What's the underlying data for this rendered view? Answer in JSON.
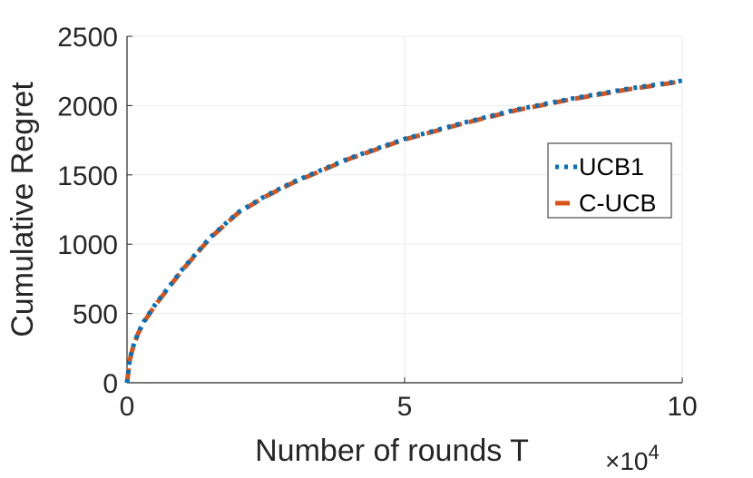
{
  "chart_data": {
    "type": "line",
    "xlabel": "Number of rounds T",
    "ylabel": "Cumulative Regret",
    "x_multiplier_label": "×10",
    "x_multiplier_exp": "4",
    "xlim": [
      0,
      100000
    ],
    "ylim": [
      0,
      2500
    ],
    "x_tick_values": [
      0,
      50000,
      100000
    ],
    "x_tick_labels": [
      "0",
      "5",
      "10"
    ],
    "y_ticks": [
      0,
      500,
      1000,
      1500,
      2000,
      2500
    ],
    "grid": true,
    "legend_position": "right",
    "x": [
      0,
      500,
      1000,
      2000,
      3000,
      5000,
      7500,
      10000,
      15000,
      20000,
      25000,
      30000,
      40000,
      50000,
      60000,
      70000,
      80000,
      90000,
      100000
    ],
    "series": [
      {
        "name": "UCB1",
        "style": "dotted",
        "color": "#0072BD",
        "values": [
          0,
          170,
          250,
          360,
          440,
          560,
          690,
          820,
          1050,
          1230,
          1350,
          1450,
          1620,
          1760,
          1870,
          1970,
          2050,
          2120,
          2180
        ]
      },
      {
        "name": "C-UCB",
        "style": "dashed",
        "color": "#D95319",
        "values": [
          0,
          165,
          245,
          355,
          435,
          555,
          685,
          815,
          1045,
          1225,
          1345,
          1445,
          1615,
          1755,
          1865,
          1965,
          2045,
          2115,
          2175
        ]
      }
    ]
  }
}
